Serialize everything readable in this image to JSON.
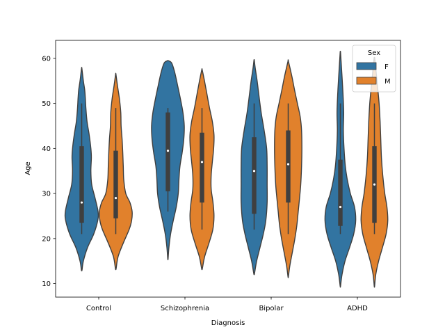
{
  "chart_data": {
    "type": "violin",
    "xlabel": "Diagnosis",
    "ylabel": "Age",
    "categories": [
      "Control",
      "Schizophrenia",
      "Bipolar",
      "ADHD"
    ],
    "ylim": [
      7,
      64
    ],
    "yticks": [
      10,
      20,
      30,
      40,
      50,
      60
    ],
    "grid": false,
    "legend": {
      "title": "Sex",
      "position": "top-right",
      "entries": [
        {
          "name": "F",
          "color": "#3274a1"
        },
        {
          "name": "M",
          "color": "#e1812c"
        }
      ]
    },
    "series": [
      {
        "name": "F",
        "color": "#3274a1",
        "groups": [
          {
            "category": "Control",
            "min": 21,
            "q1": 23.5,
            "median": 28,
            "q3": 40.5,
            "max": 50,
            "kde_range": [
              13,
              57.8
            ],
            "kde_points": [
              [
                13,
                0.02
              ],
              [
                15,
                0.1
              ],
              [
                18,
                0.35
              ],
              [
                21,
                0.72
              ],
              [
                24,
                0.96
              ],
              [
                26,
                0.98
              ],
              [
                29,
                0.8
              ],
              [
                32,
                0.6
              ],
              [
                35,
                0.55
              ],
              [
                38,
                0.58
              ],
              [
                40,
                0.55
              ],
              [
                43,
                0.45
              ],
              [
                46,
                0.32
              ],
              [
                49,
                0.25
              ],
              [
                51,
                0.22
              ],
              [
                53,
                0.18
              ],
              [
                55,
                0.1
              ],
              [
                57.8,
                0.01
              ]
            ]
          },
          {
            "category": "Schizophrenia",
            "min": 26,
            "q1": 30.5,
            "median": 39.5,
            "q3": 48,
            "max": 49,
            "kde_range": [
              15.5,
              59.5
            ],
            "kde_points": [
              [
                15.5,
                0.01
              ],
              [
                18,
                0.06
              ],
              [
                21,
                0.16
              ],
              [
                24,
                0.32
              ],
              [
                27,
                0.5
              ],
              [
                30,
                0.62
              ],
              [
                33,
                0.66
              ],
              [
                36,
                0.72
              ],
              [
                39,
                0.85
              ],
              [
                42,
                0.95
              ],
              [
                45,
                0.98
              ],
              [
                48,
                0.9
              ],
              [
                51,
                0.75
              ],
              [
                54,
                0.58
              ],
              [
                57,
                0.4
              ],
              [
                59,
                0.22
              ],
              [
                59.5,
                0.01
              ]
            ]
          },
          {
            "category": "Bipolar",
            "min": 22,
            "q1": 25.5,
            "median": 35,
            "q3": 42.5,
            "max": 50,
            "kde_range": [
              12.2,
              59.6
            ],
            "kde_points": [
              [
                12.2,
                0.02
              ],
              [
                15,
                0.15
              ],
              [
                18,
                0.35
              ],
              [
                21,
                0.55
              ],
              [
                24,
                0.7
              ],
              [
                28,
                0.78
              ],
              [
                32,
                0.78
              ],
              [
                36,
                0.78
              ],
              [
                40,
                0.75
              ],
              [
                44,
                0.6
              ],
              [
                48,
                0.42
              ],
              [
                52,
                0.28
              ],
              [
                55,
                0.18
              ],
              [
                58,
                0.06
              ],
              [
                59.6,
                0.01
              ]
            ]
          },
          {
            "category": "ADHD",
            "min": 21,
            "q1": 22.8,
            "median": 27,
            "q3": 37.5,
            "max": 50,
            "kde_range": [
              9.4,
              61.4
            ],
            "kde_points": [
              [
                9.4,
                0.01
              ],
              [
                12,
                0.1
              ],
              [
                15,
                0.28
              ],
              [
                18,
                0.55
              ],
              [
                21,
                0.8
              ],
              [
                24,
                0.92
              ],
              [
                27,
                0.85
              ],
              [
                30,
                0.6
              ],
              [
                33,
                0.42
              ],
              [
                36,
                0.3
              ],
              [
                40,
                0.22
              ],
              [
                44,
                0.18
              ],
              [
                48,
                0.2
              ],
              [
                52,
                0.16
              ],
              [
                56,
                0.1
              ],
              [
                59,
                0.05
              ],
              [
                61.4,
                0.01
              ]
            ]
          }
        ]
      },
      {
        "name": "M",
        "color": "#e1812c",
        "groups": [
          {
            "category": "Control",
            "min": 21,
            "q1": 24.5,
            "median": 29,
            "q3": 39.5,
            "max": 49,
            "kde_range": [
              13.3,
              56.5
            ],
            "kde_points": [
              [
                13.3,
                0.02
              ],
              [
                16,
                0.14
              ],
              [
                19,
                0.45
              ],
              [
                22,
                0.8
              ],
              [
                24,
                0.95
              ],
              [
                26,
                0.98
              ],
              [
                28,
                0.85
              ],
              [
                30,
                0.6
              ],
              [
                33,
                0.48
              ],
              [
                36,
                0.45
              ],
              [
                39,
                0.42
              ],
              [
                42,
                0.38
              ],
              [
                45,
                0.32
              ],
              [
                48,
                0.3
              ],
              [
                51,
                0.22
              ],
              [
                54,
                0.1
              ],
              [
                56.5,
                0.01
              ]
            ]
          },
          {
            "category": "Schizophrenia",
            "min": 22,
            "q1": 28,
            "median": 37,
            "q3": 43.5,
            "max": 49,
            "kde_range": [
              13.3,
              57.5
            ],
            "kde_points": [
              [
                13.3,
                0.02
              ],
              [
                16,
                0.16
              ],
              [
                19,
                0.42
              ],
              [
                22,
                0.65
              ],
              [
                25,
                0.72
              ],
              [
                28,
                0.66
              ],
              [
                31,
                0.55
              ],
              [
                34,
                0.55
              ],
              [
                37,
                0.62
              ],
              [
                40,
                0.7
              ],
              [
                43,
                0.72
              ],
              [
                46,
                0.62
              ],
              [
                49,
                0.45
              ],
              [
                52,
                0.3
              ],
              [
                55,
                0.15
              ],
              [
                57.5,
                0.01
              ]
            ]
          },
          {
            "category": "Bipolar",
            "min": 21,
            "q1": 28,
            "median": 36.5,
            "q3": 44,
            "max": 50,
            "kde_range": [
              11.5,
              59.4
            ],
            "kde_points": [
              [
                11.5,
                0.01
              ],
              [
                14,
                0.1
              ],
              [
                17,
                0.25
              ],
              [
                20,
                0.4
              ],
              [
                23,
                0.52
              ],
              [
                26,
                0.6
              ],
              [
                29,
                0.68
              ],
              [
                32,
                0.75
              ],
              [
                36,
                0.8
              ],
              [
                40,
                0.82
              ],
              [
                44,
                0.8
              ],
              [
                47,
                0.72
              ],
              [
                50,
                0.55
              ],
              [
                53,
                0.38
              ],
              [
                56,
                0.22
              ],
              [
                59.4,
                0.01
              ]
            ]
          },
          {
            "category": "ADHD",
            "min": 21,
            "q1": 23.5,
            "median": 32,
            "q3": 40.5,
            "max": 50,
            "kde_range": [
              9.4,
              60
            ],
            "kde_points": [
              [
                9.4,
                0.01
              ],
              [
                12,
                0.08
              ],
              [
                15,
                0.25
              ],
              [
                18,
                0.48
              ],
              [
                21,
                0.7
              ],
              [
                24,
                0.8
              ],
              [
                27,
                0.75
              ],
              [
                30,
                0.62
              ],
              [
                34,
                0.5
              ],
              [
                38,
                0.42
              ],
              [
                42,
                0.38
              ],
              [
                46,
                0.34
              ],
              [
                50,
                0.28
              ],
              [
                54,
                0.18
              ],
              [
                57,
                0.1
              ],
              [
                60,
                0.02
              ]
            ]
          }
        ]
      }
    ]
  }
}
